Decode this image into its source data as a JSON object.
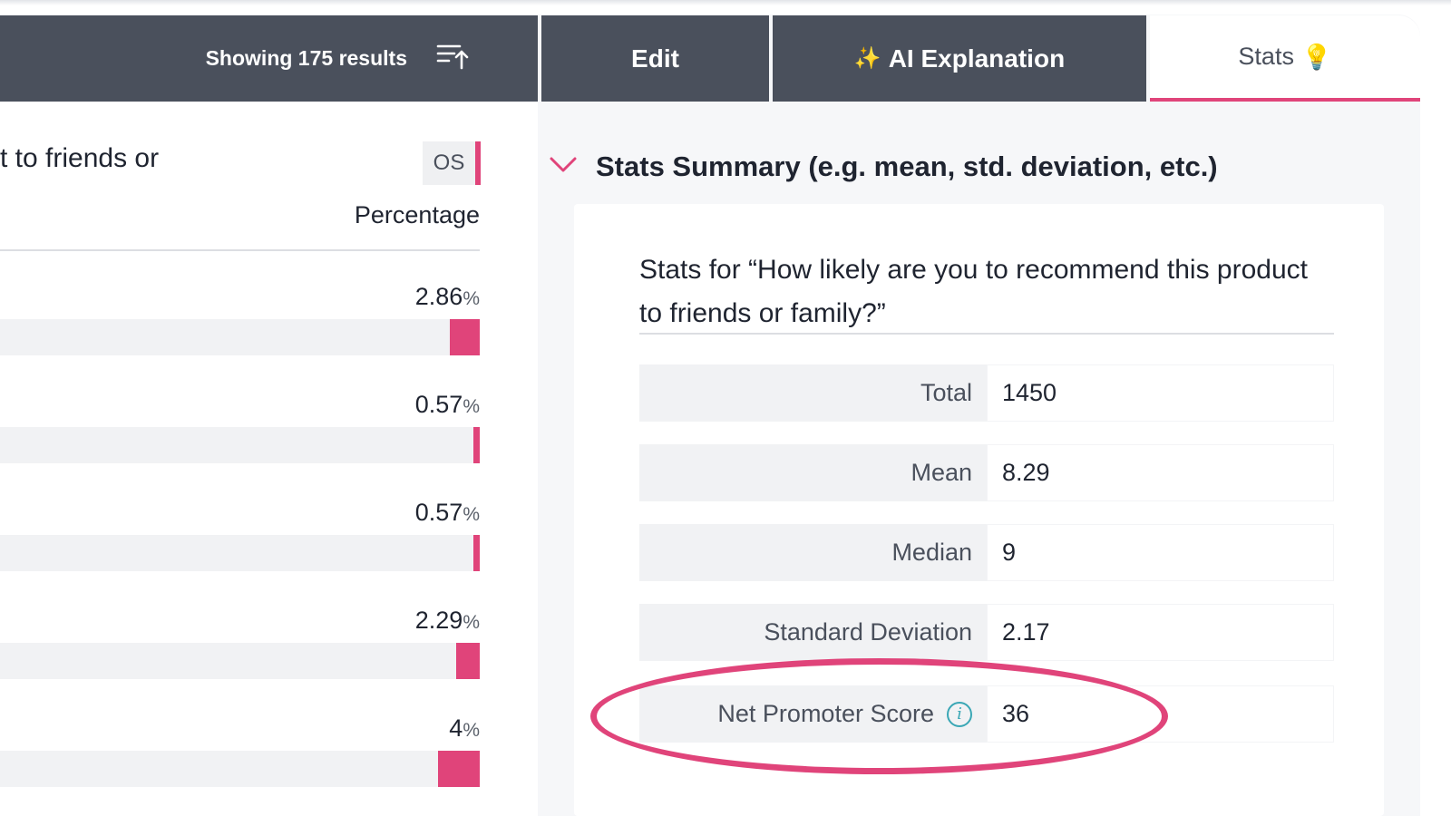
{
  "tabs": {
    "results_label": "Showing 175 results",
    "sort_icon": "sort-ascending-icon",
    "edit_label": "Edit",
    "ai_sparkle": "✨",
    "ai_label": "AI Explanation",
    "stats_label": "Stats",
    "stats_icon": "💡"
  },
  "left": {
    "question_fragment": "t to friends or",
    "badge": "OS",
    "column_header": "Percentage",
    "rows": [
      {
        "value": "2.86",
        "unit": "%",
        "fraction": 0.0286
      },
      {
        "value": "0.57",
        "unit": "%",
        "fraction": 0.0057
      },
      {
        "value": "0.57",
        "unit": "%",
        "fraction": 0.0057
      },
      {
        "value": "2.29",
        "unit": "%",
        "fraction": 0.0229
      },
      {
        "value": "4",
        "unit": "%",
        "fraction": 0.04
      }
    ]
  },
  "stats": {
    "section_title": "Stats Summary (e.g. mean, std. deviation, etc.)",
    "heading": "Stats for “How likely are you to recommend this product to friends or family?”",
    "rows": [
      {
        "label": "Total",
        "value": "1450"
      },
      {
        "label": "Mean",
        "value": "8.29"
      },
      {
        "label": "Median",
        "value": "9"
      },
      {
        "label": "Standard Deviation",
        "value": "2.17"
      },
      {
        "label": "Net Promoter Score",
        "value": "36",
        "info_icon": "i"
      }
    ]
  },
  "colors": {
    "accent": "#e0447a",
    "tab_bg": "#4a505c",
    "info": "#3aa7b5"
  }
}
